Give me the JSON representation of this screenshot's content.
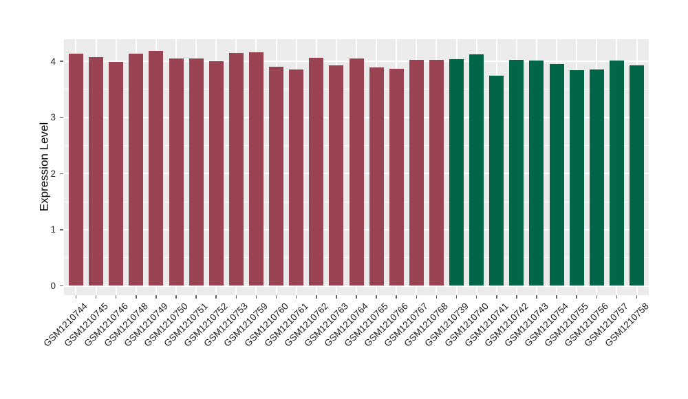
{
  "chart_data": {
    "type": "bar",
    "title": "",
    "xlabel": "",
    "ylabel": "Expression Level",
    "ylim": [
      0,
      4.4
    ],
    "yticks": [
      0,
      1,
      2,
      3,
      4
    ],
    "y_minor_ticks": [
      0.5,
      1.5,
      2.5,
      3.5
    ],
    "legend": "none",
    "panel_background": "#EBEBEB",
    "gridline_color": "#ffffff",
    "tick_mark_color": "#666666",
    "series": [
      {
        "name": "group-maroon",
        "color": "#9A4352",
        "categories": [
          "GSM1210744",
          "GSM1210745",
          "GSM1210746",
          "GSM1210748",
          "GSM1210749",
          "GSM1210750",
          "GSM1210751",
          "GSM1210752",
          "GSM1210753",
          "GSM1210759",
          "GSM1210760",
          "GSM1210761",
          "GSM1210762",
          "GSM1210763",
          "GSM1210764",
          "GSM1210765",
          "GSM1210766",
          "GSM1210767",
          "GSM1210768"
        ],
        "values": [
          4.14,
          4.07,
          3.99,
          4.13,
          4.18,
          4.05,
          4.05,
          4.0,
          4.15,
          4.16,
          3.9,
          3.85,
          4.06,
          3.93,
          4.05,
          3.89,
          3.87,
          4.03,
          4.03
        ]
      },
      {
        "name": "group-green",
        "color": "#006647",
        "categories": [
          "GSM1210739",
          "GSM1210740",
          "GSM1210741",
          "GSM1210742",
          "GSM1210743",
          "GSM1210754",
          "GSM1210755",
          "GSM1210756",
          "GSM1210757",
          "GSM1210758"
        ],
        "values": [
          4.04,
          4.12,
          3.74,
          4.02,
          4.01,
          3.95,
          3.84,
          3.85,
          4.01,
          3.93
        ]
      }
    ]
  }
}
